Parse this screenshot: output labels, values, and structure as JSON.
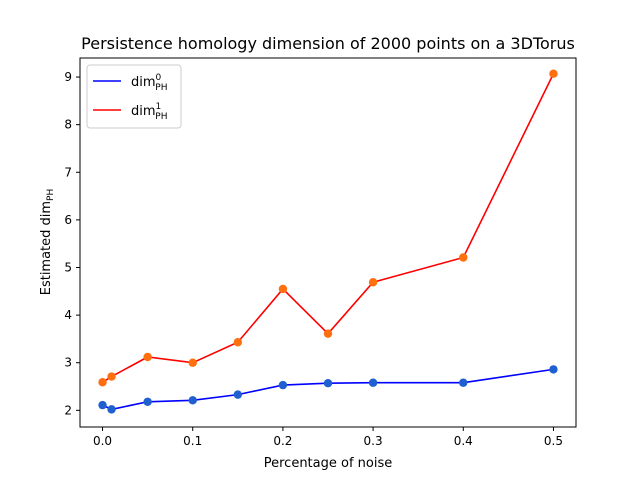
{
  "chart_data": {
    "type": "line",
    "title": "Persistence homology dimension of 2000 points on a 3DTorus",
    "xlabel": "Percentage of noise",
    "ylabel": {
      "base": "Estimated dim",
      "sub": "PH"
    },
    "x": [
      0.0,
      0.01,
      0.05,
      0.1,
      0.15,
      0.2,
      0.25,
      0.3,
      0.4,
      0.5
    ],
    "xlim": [
      -0.025,
      0.525
    ],
    "ylim": [
      1.65,
      9.4
    ],
    "xticks": [
      0.0,
      0.1,
      0.2,
      0.3,
      0.4,
      0.5
    ],
    "xtick_labels": [
      "0.0",
      "0.1",
      "0.2",
      "0.3",
      "0.4",
      "0.5"
    ],
    "yticks": [
      2,
      3,
      4,
      5,
      6,
      7,
      8,
      9
    ],
    "ytick_labels": [
      "2",
      "3",
      "4",
      "5",
      "6",
      "7",
      "8",
      "9"
    ],
    "grid": false,
    "legend_position": "top-left",
    "series": [
      {
        "legend_base": "dim",
        "legend_sup": "0",
        "legend_sub": "PH",
        "line_color": "#0000ff",
        "marker_color": "#1f5fcf",
        "values": [
          2.11,
          2.02,
          2.18,
          2.21,
          2.33,
          2.53,
          2.57,
          2.58,
          2.58,
          2.86
        ]
      },
      {
        "legend_base": "dim",
        "legend_sup": "1",
        "legend_sub": "PH",
        "line_color": "#ff0000",
        "marker_color": "#ff6f0e",
        "values": [
          2.59,
          2.71,
          3.12,
          3.0,
          3.43,
          4.55,
          3.61,
          4.69,
          5.21,
          9.07
        ]
      }
    ]
  }
}
